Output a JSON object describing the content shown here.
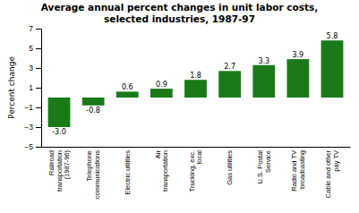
{
  "chart_data": {
    "type": "bar",
    "title": "Average annual percent changes in unit labor costs,\nselected industries, 1987-97",
    "categories": [
      "Railroad\ntransportation\n(1987-96)",
      "Telephone\ncommunications",
      "Electric utilities",
      "Air\ntransportation",
      "Trucking, exc.\nlocal",
      "Gas utilities",
      "U.S. Postal\nService",
      "Radio and TV\nbroadcasting",
      "Cable and other\npay TV"
    ],
    "values": [
      -3.0,
      -0.8,
      0.6,
      0.9,
      1.8,
      2.7,
      3.3,
      3.9,
      5.8
    ],
    "value_labels": [
      "-3.0",
      "-0.8",
      "0.6",
      "0.9",
      "1.8",
      "2.7",
      "3.3",
      "3.9",
      "5.8"
    ],
    "color": "#1a7a1a",
    "ylabel": "Percent change",
    "ylim": [
      -5,
      7
    ],
    "yticks": [
      -5,
      -3,
      -1,
      1,
      3,
      5,
      7
    ],
    "grid": false,
    "data_labels": true
  }
}
